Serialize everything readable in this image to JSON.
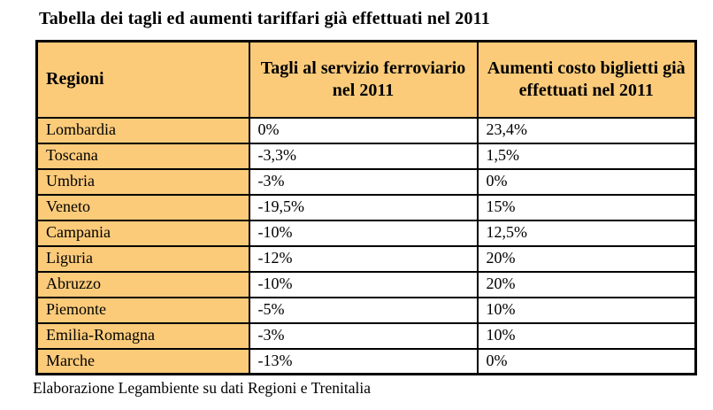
{
  "page": {
    "title": "Tabella dei tagli ed aumenti tariffari già effettuati nel 2011",
    "source_note": "Elaborazione Legambiente su dati Regioni e Trenitalia"
  },
  "table": {
    "columns": [
      "Regioni",
      "Tagli al servizio ferroviario nel 2011",
      "Aumenti costo biglietti già effettuati nel 2011"
    ],
    "rows": [
      [
        "Lombardia",
        "0%",
        "23,4%"
      ],
      [
        "Toscana",
        "-3,3%",
        "1,5%"
      ],
      [
        "Umbria",
        "-3%",
        "0%"
      ],
      [
        "Veneto",
        "-19,5%",
        "15%"
      ],
      [
        "Campania",
        "-10%",
        "12,5%"
      ],
      [
        "Liguria",
        "-12%",
        "20%"
      ],
      [
        "Abruzzo",
        "-10%",
        "20%"
      ],
      [
        "Piemonte",
        "-5%",
        "10%"
      ],
      [
        "Emilia-Romagna",
        "-3%",
        "10%"
      ],
      [
        "Marche",
        "-13%",
        "0%"
      ]
    ]
  },
  "colors": {
    "header_bg": "#FBCB7A",
    "region_column_bg": "#FBCB7A",
    "border": "#000000",
    "text": "#000000",
    "page_bg": "#FFFFFF"
  },
  "chart_data": {
    "type": "table",
    "title": "Tabella dei tagli ed aumenti tariffari già effettuati nel 2011",
    "categories": [
      "Lombardia",
      "Toscana",
      "Umbria",
      "Veneto",
      "Campania",
      "Liguria",
      "Abruzzo",
      "Piemonte",
      "Emilia-Romagna",
      "Marche"
    ],
    "series": [
      {
        "name": "Tagli al servizio ferroviario nel 2011 (%)",
        "values": [
          0,
          -3.3,
          -3,
          -19.5,
          -10,
          -12,
          -10,
          -5,
          -3,
          -13
        ]
      },
      {
        "name": "Aumenti costo biglietti già effettuati nel 2011 (%)",
        "values": [
          23.4,
          1.5,
          0,
          15,
          12.5,
          20,
          20,
          10,
          10,
          0
        ]
      }
    ],
    "source": "Elaborazione Legambiente su dati Regioni e Trenitalia"
  }
}
